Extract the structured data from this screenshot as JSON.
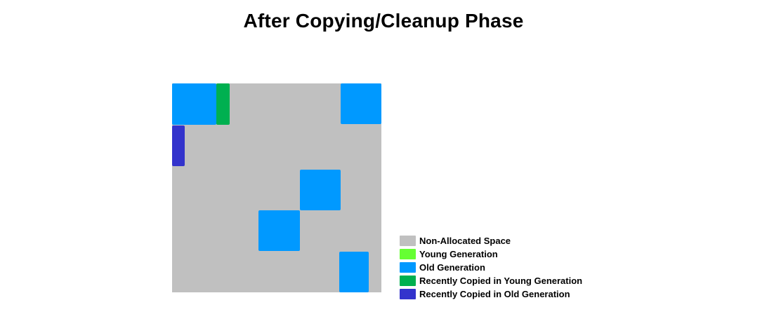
{
  "title": "After Copying/Cleanup Phase",
  "colors": {
    "non_allocated": "#c0c0c0",
    "young": "#66ff33",
    "old": "#0099ff",
    "copied_young": "#00b050",
    "copied_old": "#3333cc"
  },
  "legend": [
    {
      "key": "non_allocated",
      "label": "Non-Allocated Space"
    },
    {
      "key": "young",
      "label": "Young Generation"
    },
    {
      "key": "old",
      "label": "Old Generation"
    },
    {
      "key": "copied_young",
      "label": "Recently Copied in Young Generation"
    },
    {
      "key": "copied_old",
      "label": "Recently Copied in Old Generation"
    }
  ]
}
